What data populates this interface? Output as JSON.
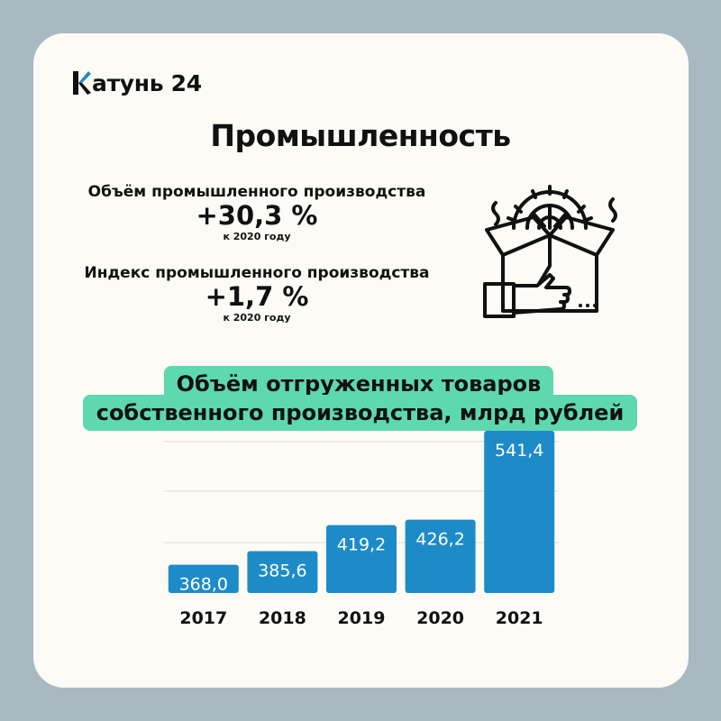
{
  "logo": {
    "text": "атунь 24",
    "full": "Катунь 24",
    "accent": "#1e8bc9"
  },
  "title": "Промышленность",
  "stats": [
    {
      "label": "Объём промышленного производства",
      "value": "+30,3 %",
      "note": "к 2020 году"
    },
    {
      "label": "Индекс промышленного производства",
      "value": "+1,7 %",
      "note": "к 2020 году"
    }
  ],
  "icon": "industry-gear-box-hand-icon",
  "colors": {
    "background": "#a9b9c2",
    "card": "#fcfbf5",
    "banner": "#5ed8ae",
    "bar": "#1e8bc9"
  },
  "chart_data": {
    "type": "bar",
    "title": "Объём отгруженных товаров собственного производства, млрд рублей",
    "title_lines": [
      "Объём отгруженных товаров",
      "собственного производства, млрд рублей"
    ],
    "categories": [
      "2017",
      "2018",
      "2019",
      "2020",
      "2021"
    ],
    "values": [
      368.0,
      385.6,
      419.2,
      426.2,
      541.4
    ],
    "labels": [
      "368,0",
      "385,6",
      "419,2",
      "426,2",
      "541,4"
    ],
    "xlabel": "",
    "ylabel": "",
    "grid": true
  }
}
